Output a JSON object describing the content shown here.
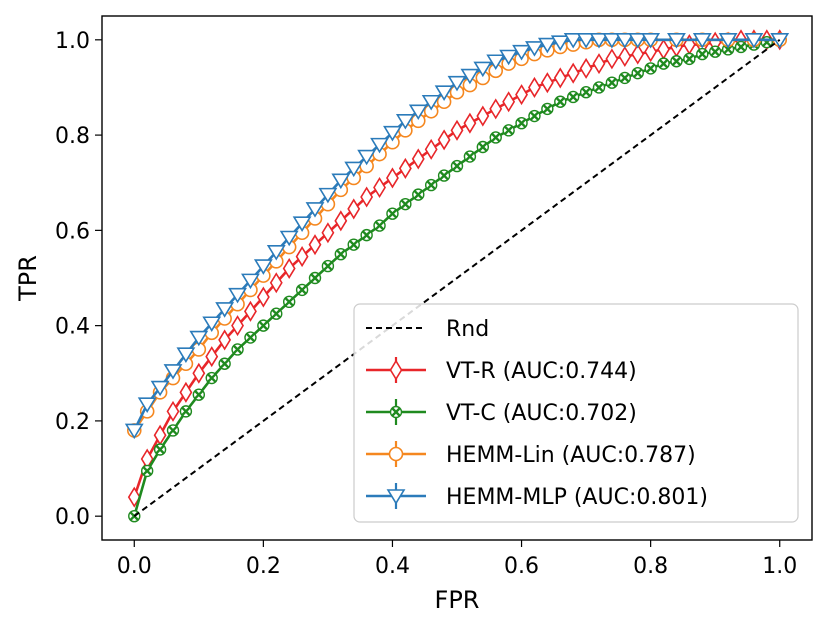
{
  "chart_data": {
    "type": "line",
    "title": "",
    "xlabel": "FPR",
    "ylabel": "TPR",
    "xlim": [
      -0.05,
      1.05
    ],
    "ylim": [
      -0.05,
      1.05
    ],
    "xticks": [
      "0.0",
      "0.2",
      "0.4",
      "0.6",
      "0.8",
      "1.0"
    ],
    "yticks": [
      "0.0",
      "0.2",
      "0.4",
      "0.6",
      "0.8",
      "1.0"
    ],
    "grid": false,
    "legend_position": "bottom-right",
    "series": [
      {
        "name": "Rnd",
        "color": "#000000",
        "style": "dashed",
        "marker": "none",
        "x": [
          0.0,
          1.0
        ],
        "y": [
          0.0,
          1.0
        ]
      },
      {
        "name": "VT-R (AUC:0.744)",
        "color": "#e8262a",
        "style": "solid",
        "marker": "thin-diamond",
        "x": [
          0.0,
          0.02,
          0.04,
          0.06,
          0.08,
          0.1,
          0.12,
          0.14,
          0.16,
          0.18,
          0.2,
          0.22,
          0.24,
          0.26,
          0.28,
          0.3,
          0.32,
          0.34,
          0.36,
          0.38,
          0.4,
          0.42,
          0.44,
          0.46,
          0.48,
          0.5,
          0.52,
          0.54,
          0.56,
          0.58,
          0.6,
          0.62,
          0.64,
          0.66,
          0.68,
          0.7,
          0.72,
          0.74,
          0.76,
          0.78,
          0.8,
          0.82,
          0.84,
          0.86,
          0.88,
          0.9,
          0.92,
          0.94,
          0.96,
          0.98,
          1.0
        ],
        "y": [
          0.04,
          0.12,
          0.17,
          0.22,
          0.26,
          0.3,
          0.335,
          0.37,
          0.4,
          0.43,
          0.46,
          0.49,
          0.52,
          0.545,
          0.57,
          0.595,
          0.62,
          0.645,
          0.67,
          0.69,
          0.71,
          0.73,
          0.75,
          0.77,
          0.79,
          0.81,
          0.825,
          0.84,
          0.855,
          0.87,
          0.885,
          0.9,
          0.91,
          0.92,
          0.93,
          0.94,
          0.95,
          0.96,
          0.965,
          0.97,
          0.975,
          0.98,
          0.985,
          0.99,
          0.99,
          0.995,
          0.995,
          1.0,
          1.0,
          1.0,
          1.0
        ]
      },
      {
        "name": "VT-C (AUC:0.702)",
        "color": "#1f8a1f",
        "style": "solid",
        "marker": "x-circle",
        "x": [
          0.0,
          0.02,
          0.04,
          0.06,
          0.08,
          0.1,
          0.12,
          0.14,
          0.16,
          0.18,
          0.2,
          0.22,
          0.24,
          0.26,
          0.28,
          0.3,
          0.32,
          0.34,
          0.36,
          0.38,
          0.4,
          0.42,
          0.44,
          0.46,
          0.48,
          0.5,
          0.52,
          0.54,
          0.56,
          0.58,
          0.6,
          0.62,
          0.64,
          0.66,
          0.68,
          0.7,
          0.72,
          0.74,
          0.76,
          0.78,
          0.8,
          0.82,
          0.84,
          0.86,
          0.88,
          0.9,
          0.92,
          0.94,
          0.96,
          0.98,
          1.0
        ],
        "y": [
          0.0,
          0.095,
          0.14,
          0.18,
          0.22,
          0.255,
          0.29,
          0.32,
          0.35,
          0.375,
          0.4,
          0.425,
          0.45,
          0.475,
          0.5,
          0.525,
          0.55,
          0.57,
          0.59,
          0.61,
          0.635,
          0.655,
          0.675,
          0.695,
          0.715,
          0.735,
          0.755,
          0.775,
          0.795,
          0.81,
          0.825,
          0.84,
          0.855,
          0.87,
          0.88,
          0.89,
          0.9,
          0.91,
          0.92,
          0.93,
          0.94,
          0.95,
          0.955,
          0.96,
          0.97,
          0.975,
          0.98,
          0.985,
          0.99,
          0.995,
          1.0
        ]
      },
      {
        "name": "HEMM-Lin (AUC:0.787)",
        "color": "#f5871f",
        "style": "solid",
        "marker": "circle",
        "x": [
          0.0,
          0.02,
          0.04,
          0.06,
          0.08,
          0.1,
          0.12,
          0.14,
          0.16,
          0.18,
          0.2,
          0.22,
          0.24,
          0.26,
          0.28,
          0.3,
          0.32,
          0.34,
          0.36,
          0.38,
          0.4,
          0.42,
          0.44,
          0.46,
          0.48,
          0.5,
          0.52,
          0.54,
          0.56,
          0.58,
          0.6,
          0.62,
          0.64,
          0.66,
          0.68,
          0.7,
          0.72,
          0.74,
          0.76,
          0.78,
          0.8,
          0.84,
          0.88,
          0.92,
          0.96,
          1.0
        ],
        "y": [
          0.18,
          0.22,
          0.26,
          0.29,
          0.32,
          0.35,
          0.385,
          0.415,
          0.445,
          0.475,
          0.505,
          0.535,
          0.565,
          0.595,
          0.625,
          0.655,
          0.685,
          0.71,
          0.735,
          0.76,
          0.785,
          0.81,
          0.83,
          0.85,
          0.87,
          0.89,
          0.905,
          0.92,
          0.935,
          0.95,
          0.96,
          0.97,
          0.978,
          0.985,
          0.99,
          0.995,
          1.0,
          1.0,
          1.0,
          1.0,
          1.0,
          1.0,
          1.0,
          1.0,
          1.0,
          1.0
        ]
      },
      {
        "name": "HEMM-MLP (AUC:0.801)",
        "color": "#2b7bba",
        "style": "solid",
        "marker": "triangle-down",
        "x": [
          0.0,
          0.02,
          0.04,
          0.06,
          0.08,
          0.1,
          0.12,
          0.14,
          0.16,
          0.18,
          0.2,
          0.22,
          0.24,
          0.26,
          0.28,
          0.3,
          0.32,
          0.34,
          0.36,
          0.38,
          0.4,
          0.42,
          0.44,
          0.46,
          0.48,
          0.5,
          0.52,
          0.54,
          0.56,
          0.58,
          0.6,
          0.62,
          0.64,
          0.66,
          0.68,
          0.7,
          0.72,
          0.74,
          0.76,
          0.78,
          0.8,
          0.84,
          0.88,
          0.92,
          0.96,
          1.0
        ],
        "y": [
          0.18,
          0.235,
          0.27,
          0.305,
          0.34,
          0.375,
          0.405,
          0.435,
          0.465,
          0.495,
          0.525,
          0.555,
          0.585,
          0.615,
          0.645,
          0.675,
          0.705,
          0.73,
          0.755,
          0.78,
          0.805,
          0.83,
          0.85,
          0.87,
          0.89,
          0.91,
          0.925,
          0.94,
          0.955,
          0.965,
          0.975,
          0.983,
          0.99,
          0.995,
          1.0,
          1.0,
          1.0,
          1.0,
          1.0,
          1.0,
          1.0,
          1.0,
          1.0,
          1.0,
          1.0,
          1.0
        ]
      }
    ]
  }
}
